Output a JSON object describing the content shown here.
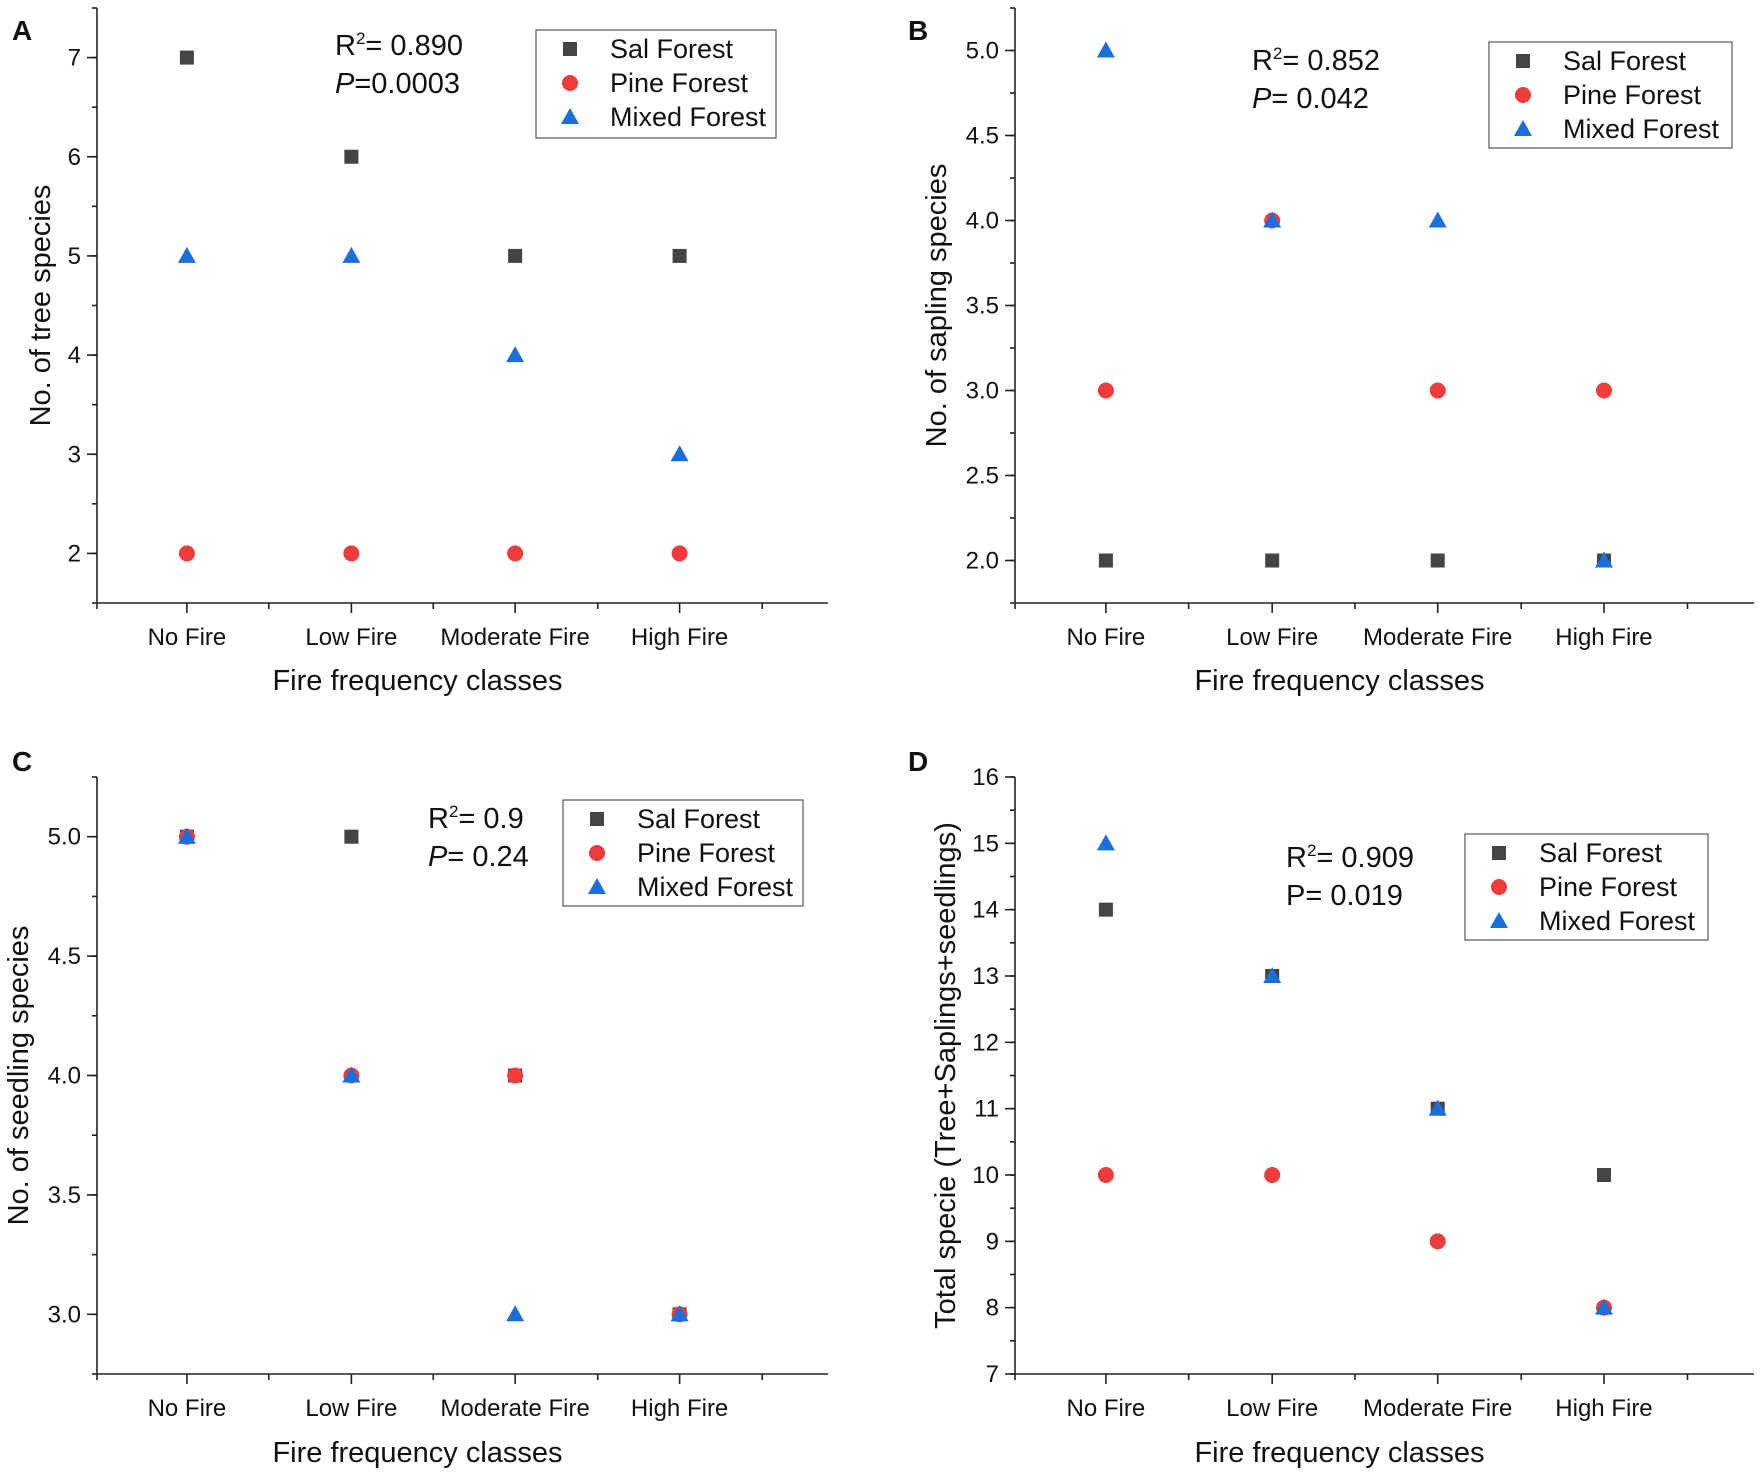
{
  "colors": {
    "sal": "#444444",
    "pine": "#ee3b3b",
    "mixed": "#1a6fdb"
  },
  "chart_data": [
    {
      "panel": "A",
      "type": "scatter",
      "categories": [
        "No Fire",
        "Low Fire",
        "Moderate Fire",
        "High Fire"
      ],
      "xlabel": "Fire frequency classes",
      "ylabel": "No. of tree species",
      "ylim": [
        1.5,
        7.5
      ],
      "yticks": [
        2,
        3,
        4,
        5,
        6,
        7
      ],
      "ytick_labels": [
        "2",
        "3",
        "4",
        "5",
        "6",
        "7"
      ],
      "annotation": {
        "r2_prefix": "R",
        "r2_sup": "2",
        "r2_value": "= 0.890",
        "p_prefix": "P",
        "p_value": "=0.0003"
      },
      "legend_position": "top-right",
      "series": [
        {
          "name": "Sal Forest",
          "marker": "square",
          "color_key": "sal",
          "values": [
            7,
            6,
            5,
            5
          ]
        },
        {
          "name": "Pine Forest",
          "marker": "circle",
          "color_key": "pine",
          "values": [
            2,
            2,
            2,
            2
          ]
        },
        {
          "name": "Mixed Forest",
          "marker": "triangle",
          "color_key": "mixed",
          "values": [
            5,
            5,
            4,
            3
          ]
        }
      ]
    },
    {
      "panel": "B",
      "type": "scatter",
      "categories": [
        "No Fire",
        "Low Fire",
        "Moderate Fire",
        "High Fire"
      ],
      "xlabel": "Fire frequency classes",
      "ylabel": "No. of sapling species",
      "ylim": [
        1.75,
        5.25
      ],
      "yticks": [
        2.0,
        2.5,
        3.0,
        3.5,
        4.0,
        4.5,
        5.0
      ],
      "ytick_labels": [
        "2.0",
        "2.5",
        "3.0",
        "3.5",
        "4.0",
        "4.5",
        "5.0"
      ],
      "annotation": {
        "r2_prefix": "R",
        "r2_sup": "2",
        "r2_value": "= 0.852",
        "p_prefix": "P",
        "p_value": "= 0.042"
      },
      "legend_position": "top-right",
      "series": [
        {
          "name": "Sal Forest",
          "marker": "square",
          "color_key": "sal",
          "values": [
            2,
            2,
            2,
            2
          ]
        },
        {
          "name": "Pine Forest",
          "marker": "circle",
          "color_key": "pine",
          "values": [
            3,
            4,
            3,
            3
          ]
        },
        {
          "name": "Mixed Forest",
          "marker": "triangle",
          "color_key": "mixed",
          "values": [
            5,
            4,
            4,
            2
          ]
        }
      ]
    },
    {
      "panel": "C",
      "type": "scatter",
      "categories": [
        "No Fire",
        "Low Fire",
        "Moderate Fire",
        "High Fire"
      ],
      "xlabel": "Fire frequency classes",
      "ylabel": "No. of seedling species",
      "ylim": [
        2.75,
        5.25
      ],
      "yticks": [
        3.0,
        3.5,
        4.0,
        4.5,
        5.0
      ],
      "ytick_labels": [
        "3.0",
        "3.5",
        "4.0",
        "4.5",
        "5.0"
      ],
      "annotation": {
        "r2_prefix": "R",
        "r2_sup": "2",
        "r2_value": "= 0.9",
        "p_prefix": "P",
        "p_value": "= 0.24"
      },
      "legend_position": "top-right",
      "series": [
        {
          "name": "Sal Forest",
          "marker": "square",
          "color_key": "sal",
          "values": [
            5,
            5,
            4,
            3
          ]
        },
        {
          "name": "Pine Forest",
          "marker": "circle",
          "color_key": "pine",
          "values": [
            5,
            4,
            4,
            3
          ]
        },
        {
          "name": "Mixed Forest",
          "marker": "triangle",
          "color_key": "mixed",
          "values": [
            5,
            4,
            3,
            3
          ]
        }
      ]
    },
    {
      "panel": "D",
      "type": "scatter",
      "categories": [
        "No Fire",
        "Low Fire",
        "Moderate Fire",
        "High Fire"
      ],
      "xlabel": "Fire frequency classes",
      "ylabel": "Total specie (Tree+Saplings+seedlings)",
      "ylim": [
        7,
        16
      ],
      "yticks": [
        7,
        8,
        9,
        10,
        11,
        12,
        13,
        14,
        15,
        16
      ],
      "ytick_labels": [
        "7",
        "8",
        "9",
        "10",
        "11",
        "12",
        "13",
        "14",
        "15",
        "16"
      ],
      "annotation": {
        "r2_prefix": "R",
        "r2_sup": "2",
        "r2_value": "= 0.909",
        "p_prefix": "P",
        "p_value": "= 0.019"
      },
      "legend_position": "top-right",
      "series": [
        {
          "name": "Sal Forest",
          "marker": "square",
          "color_key": "sal",
          "values": [
            14,
            13,
            11,
            10
          ]
        },
        {
          "name": "Pine Forest",
          "marker": "circle",
          "color_key": "pine",
          "values": [
            10,
            10,
            9,
            8
          ]
        },
        {
          "name": "Mixed Forest",
          "marker": "triangle",
          "color_key": "mixed",
          "values": [
            15,
            13,
            11,
            8
          ]
        }
      ]
    }
  ]
}
